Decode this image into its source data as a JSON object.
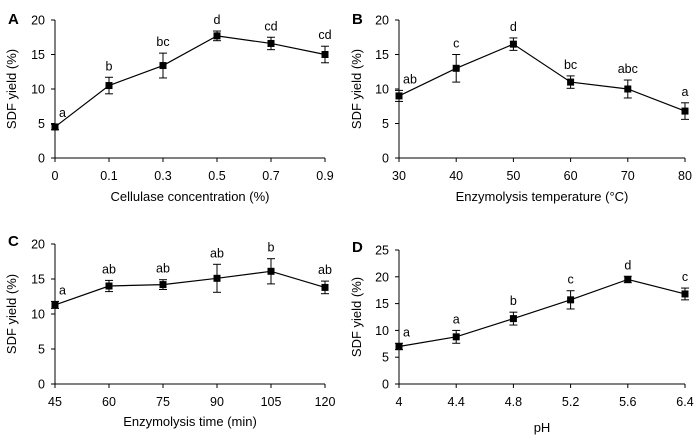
{
  "chart_data": [
    {
      "panel": "A",
      "type": "line",
      "categories": [
        "0",
        "0.1",
        "0.3",
        "0.5",
        "0.7",
        "0.9"
      ],
      "values": [
        4.5,
        10.5,
        13.4,
        17.7,
        16.6,
        15.0
      ],
      "errors": [
        0.4,
        1.2,
        1.8,
        0.7,
        0.9,
        1.2
      ],
      "significance": [
        "a",
        "b",
        "bc",
        "d",
        "cd",
        "cd"
      ],
      "xlabel": "Cellulase concentration (%)",
      "ylabel": "SDF  yield (%)",
      "ylim": [
        0,
        20
      ],
      "yticks": [
        0,
        5,
        10,
        15,
        20
      ],
      "grid": false
    },
    {
      "panel": "B",
      "type": "line",
      "categories": [
        "30",
        "40",
        "50",
        "60",
        "70",
        "80"
      ],
      "values": [
        9.0,
        13.0,
        16.5,
        11.0,
        10.0,
        6.8
      ],
      "errors": [
        0.8,
        2.0,
        0.9,
        0.9,
        1.3,
        1.2
      ],
      "significance": [
        "ab",
        "c",
        "d",
        "bc",
        "abc",
        "a"
      ],
      "xlabel": "Enzymolysis temperature (°C)",
      "ylabel": "SDF  yield (%)",
      "ylim": [
        0,
        20
      ],
      "yticks": [
        0,
        5,
        10,
        15,
        20
      ],
      "grid": false
    },
    {
      "panel": "C",
      "type": "line",
      "categories": [
        "45",
        "60",
        "75",
        "90",
        "105",
        "120"
      ],
      "values": [
        11.3,
        14.0,
        14.2,
        15.1,
        16.1,
        13.8
      ],
      "errors": [
        0.5,
        0.8,
        0.7,
        2.0,
        1.8,
        0.9
      ],
      "significance": [
        "a",
        "ab",
        "ab",
        "ab",
        "b",
        "ab"
      ],
      "xlabel": "Enzymolysis time (min)",
      "ylabel": "SDF  yield (%)",
      "ylim": [
        0,
        20
      ],
      "yticks": [
        0,
        5,
        10,
        15,
        20
      ],
      "grid": false
    },
    {
      "panel": "D",
      "type": "line",
      "categories": [
        "4",
        "4.4",
        "4.8",
        "5.2",
        "5.6",
        "6.4"
      ],
      "values": [
        7.0,
        8.8,
        12.2,
        15.7,
        19.5,
        16.8
      ],
      "errors": [
        0.6,
        1.2,
        1.2,
        1.7,
        0.6,
        1.1
      ],
      "significance": [
        "a",
        "a",
        "b",
        "c",
        "d",
        "c"
      ],
      "xlabel": "pH",
      "ylabel": "SDF  yield (%)",
      "ylim": [
        0,
        25
      ],
      "yticks": [
        0,
        5,
        10,
        15,
        20,
        25
      ],
      "grid": false
    }
  ]
}
